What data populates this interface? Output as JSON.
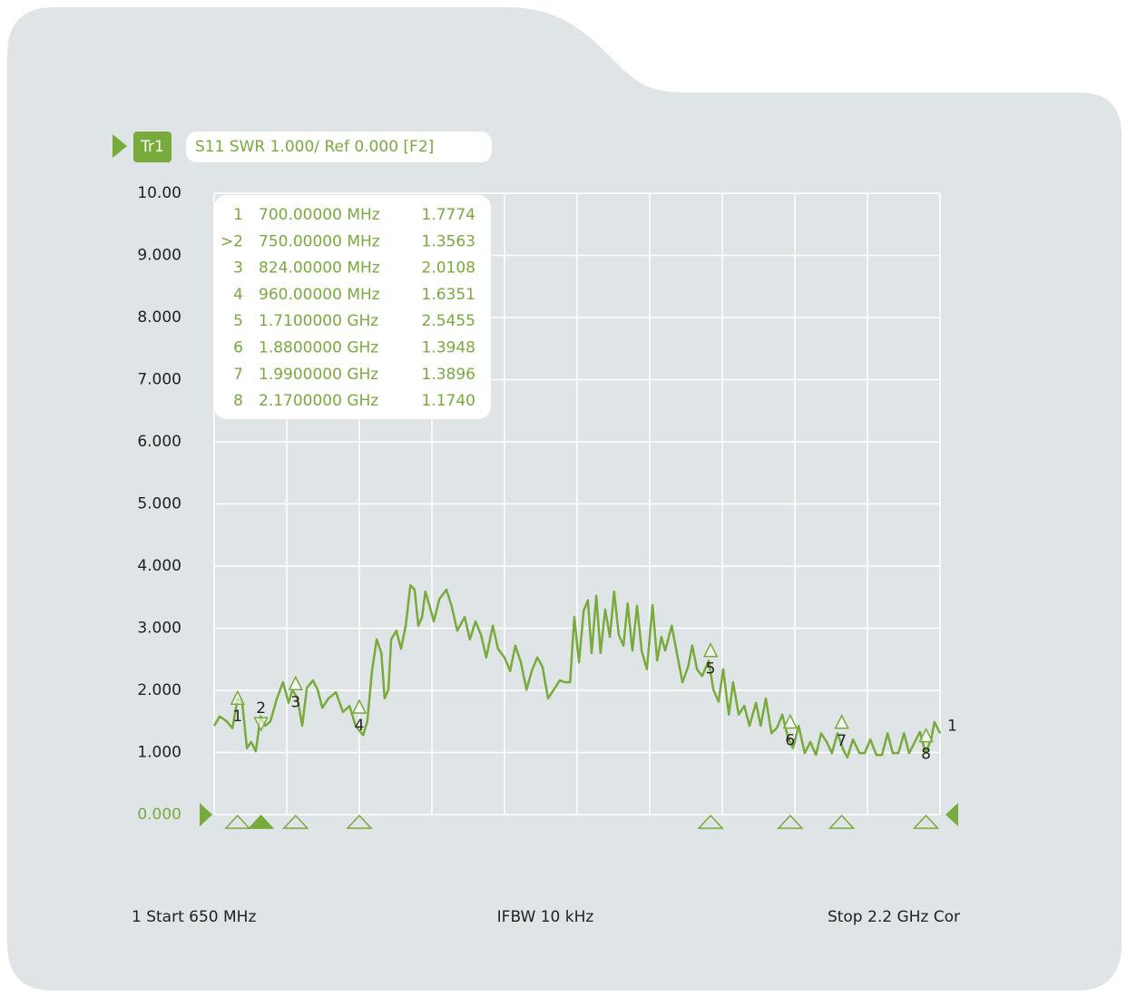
{
  "header": {
    "trace": "Tr1",
    "setup": "S11  SWR 1.000/  Ref 0.000  [F2]"
  },
  "chart_data": {
    "type": "line",
    "xlim": [
      650,
      2200
    ],
    "xticks": [
      650,
      805,
      960,
      1115,
      1270,
      1425,
      1580,
      1735,
      1890,
      2045,
      2200
    ],
    "ylim": [
      0,
      10
    ],
    "yticks": [
      {
        "value": 0,
        "label": "0.000"
      },
      {
        "value": 1,
        "label": "1.000"
      },
      {
        "value": 2,
        "label": "2.000"
      },
      {
        "value": 3,
        "label": "3.000"
      },
      {
        "value": 4,
        "label": "4.000"
      },
      {
        "value": 5,
        "label": "5.000"
      },
      {
        "value": 6,
        "label": "6.000"
      },
      {
        "value": 7,
        "label": "7.000"
      },
      {
        "value": 8,
        "label": "8.000"
      },
      {
        "value": 9,
        "label": "9.000"
      },
      {
        "value": 10,
        "label": "10.00"
      }
    ],
    "grid": true,
    "series": [
      {
        "name": "1",
        "color": "#78aa3c",
        "x": [
          650,
          662,
          677,
          689,
          700,
          710,
          720,
          729,
          739,
          749,
          759,
          770,
          784,
          797,
          809,
          817,
          828,
          838,
          848,
          861,
          871,
          881,
          894,
          910,
          925,
          939,
          952,
          968,
          977,
          987,
          997,
          1007,
          1014,
          1022,
          1028,
          1039,
          1049,
          1059,
          1069,
          1078,
          1086,
          1094,
          1101,
          1111,
          1119,
          1131,
          1146,
          1158,
          1169,
          1185,
          1196,
          1208,
          1220,
          1231,
          1245,
          1256,
          1270,
          1282,
          1293,
          1305,
          1317,
          1328,
          1340,
          1351,
          1363,
          1375,
          1388,
          1400,
          1410,
          1419,
          1429,
          1439,
          1448,
          1456,
          1466,
          1475,
          1485,
          1495,
          1504,
          1514,
          1524,
          1533,
          1543,
          1553,
          1563,
          1574,
          1586,
          1596,
          1605,
          1613,
          1627,
          1638,
          1650,
          1662,
          1671,
          1681,
          1692,
          1706,
          1716,
          1727,
          1737,
          1749,
          1758,
          1770,
          1782,
          1793,
          1807,
          1817,
          1828,
          1840,
          1852,
          1863,
          1874,
          1886,
          1898,
          1911,
          1923,
          1935,
          1946,
          1958,
          1969,
          1981,
          1993,
          2002,
          2014,
          2028,
          2039,
          2051,
          2064,
          2076,
          2088,
          2099,
          2111,
          2123,
          2134,
          2146,
          2157,
          2169,
          2181,
          2188,
          2200
        ],
        "values": [
          1.43,
          1.58,
          1.5,
          1.39,
          1.87,
          1.8,
          1.07,
          1.17,
          1.02,
          1.58,
          1.43,
          1.5,
          1.87,
          2.13,
          1.8,
          2.01,
          1.87,
          1.43,
          2.04,
          2.16,
          2.01,
          1.72,
          1.87,
          1.97,
          1.65,
          1.75,
          1.43,
          1.28,
          1.5,
          2.31,
          2.82,
          2.6,
          1.87,
          2.01,
          2.82,
          2.96,
          2.67,
          3.04,
          3.69,
          3.62,
          3.04,
          3.18,
          3.59,
          3.33,
          3.11,
          3.47,
          3.62,
          3.33,
          2.96,
          3.18,
          2.82,
          3.11,
          2.89,
          2.53,
          3.04,
          2.67,
          2.53,
          2.31,
          2.72,
          2.45,
          2.01,
          2.31,
          2.53,
          2.38,
          1.87,
          2.01,
          2.16,
          2.13,
          2.13,
          3.18,
          2.45,
          3.28,
          3.45,
          2.6,
          3.52,
          2.6,
          3.3,
          2.86,
          3.59,
          2.89,
          2.72,
          3.4,
          2.64,
          3.36,
          2.63,
          2.34,
          3.37,
          2.48,
          2.86,
          2.64,
          3.04,
          2.6,
          2.13,
          2.38,
          2.72,
          2.34,
          2.23,
          2.48,
          2.01,
          1.82,
          2.34,
          1.61,
          2.13,
          1.61,
          1.75,
          1.43,
          1.8,
          1.43,
          1.87,
          1.31,
          1.4,
          1.61,
          1.28,
          1.07,
          1.43,
          0.99,
          1.17,
          0.96,
          1.31,
          1.17,
          0.99,
          1.31,
          1.05,
          0.92,
          1.21,
          0.99,
          0.99,
          1.21,
          0.96,
          0.96,
          1.31,
          0.99,
          0.99,
          1.31,
          0.99,
          1.17,
          1.33,
          0.99,
          1.21,
          1.49,
          1.31
        ]
      }
    ],
    "markers": {
      "names": [
        "1",
        ">2",
        "3",
        "4",
        "5",
        "6",
        "7",
        "8"
      ],
      "trace_labels": [
        "1",
        "2",
        "3",
        "4",
        "5",
        "6",
        "7",
        "8"
      ],
      "frequencies": [
        700,
        750,
        824,
        960,
        1710,
        1880,
        1990,
        2170
      ],
      "frequency_labels": [
        "700.00000 MHz",
        "750.00000 MHz",
        "824.00000 MHz",
        "960.00000 MHz",
        "1.7100000 GHz",
        "1.8800000 GHz",
        "1.9900000 GHz",
        "2.1700000 GHz"
      ],
      "values": [
        1.7774,
        1.3563,
        2.0108,
        1.6351,
        2.5455,
        1.3948,
        1.3896,
        1.174
      ],
      "value_labels": [
        "1.7774",
        "1.3563",
        "2.0108",
        "1.6351",
        "2.5455",
        "1.3948",
        "1.3896",
        "1.1740"
      ]
    }
  },
  "footer": {
    "start": "1 Start 650 MHz",
    "ifbw": "IFBW 10 kHz",
    "stop": "Stop 2.2 GHz  Cor"
  }
}
